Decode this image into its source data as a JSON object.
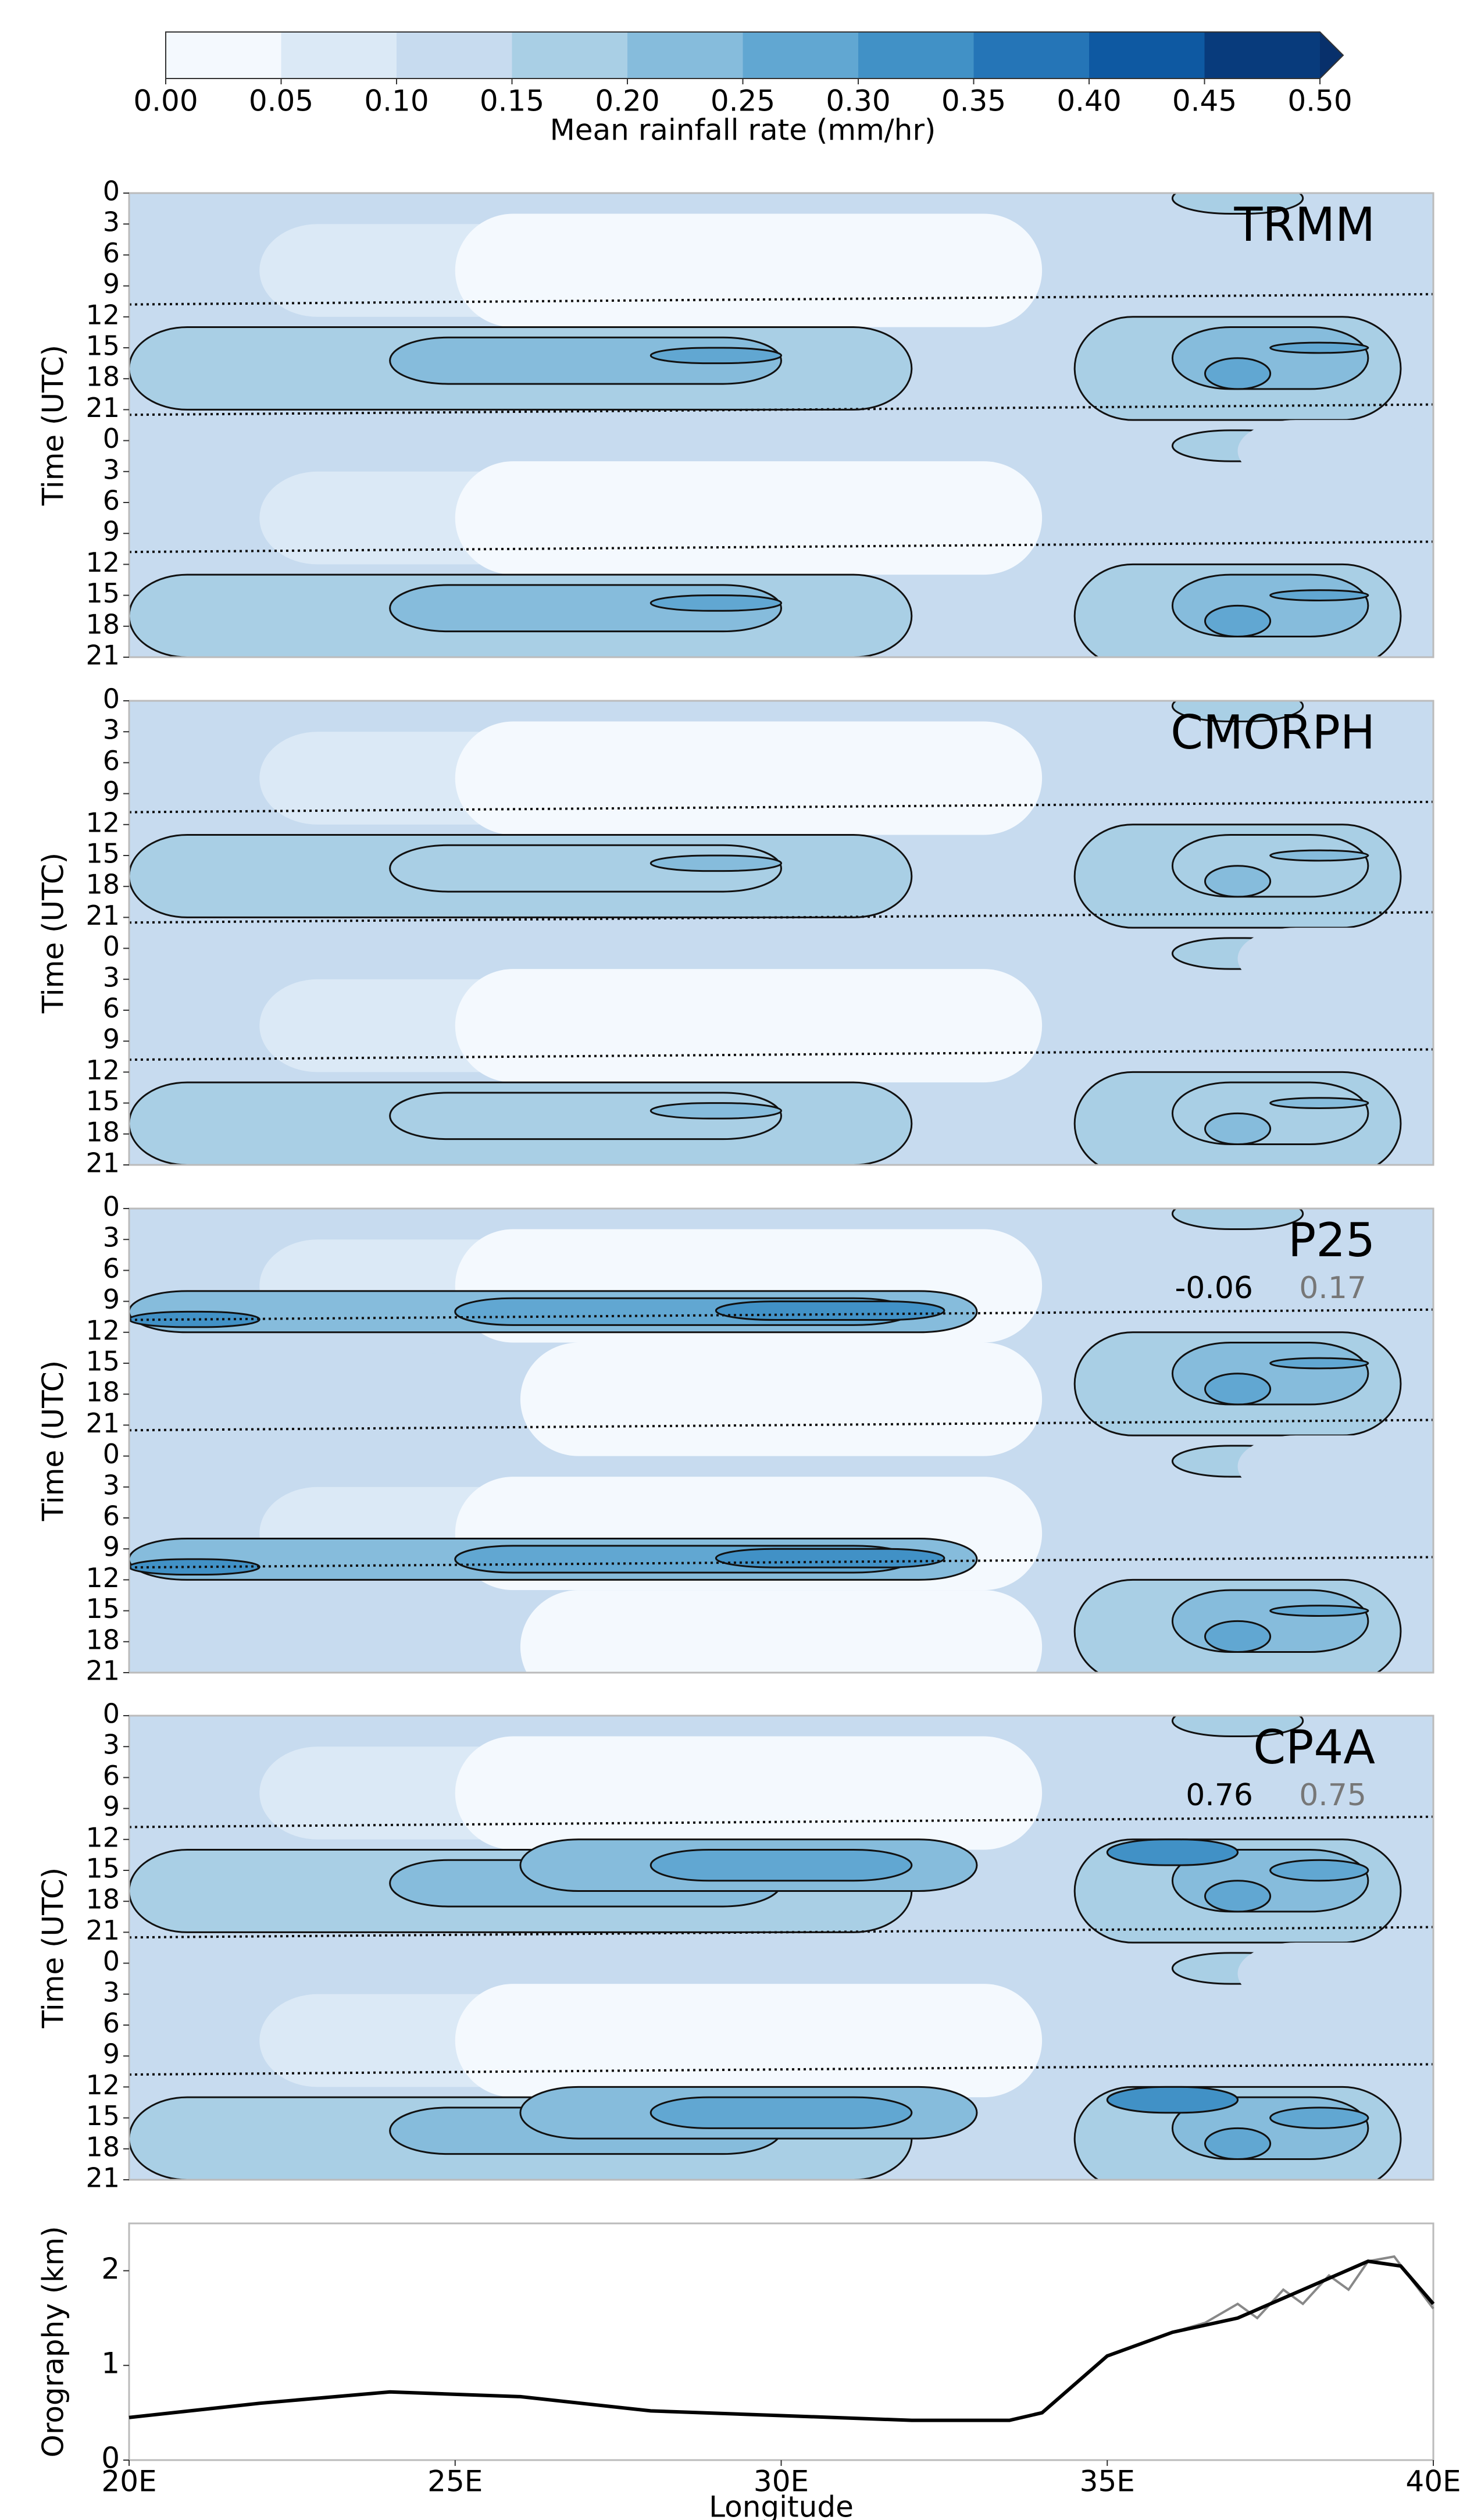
{
  "chart_data": [
    {
      "type": "colorbar",
      "label": "Mean rainfall rate (mm/hr)",
      "ticks": [
        {
          "value": 0,
          "label": "0.00"
        },
        {
          "value": 0.05,
          "label": "0.05"
        },
        {
          "value": 0.1,
          "label": "0.10"
        },
        {
          "value": 0.15,
          "label": "0.15"
        },
        {
          "value": 0.2,
          "label": "0.20"
        },
        {
          "value": 0.25,
          "label": "0.25"
        },
        {
          "value": 0.3,
          "label": "0.30"
        },
        {
          "value": 0.35,
          "label": "0.35"
        },
        {
          "value": 0.4,
          "label": "0.40"
        },
        {
          "value": 0.45,
          "label": "0.45"
        },
        {
          "value": 0.5,
          "label": "0.50"
        }
      ],
      "colors": [
        "#f4f9fe",
        "#dbe9f6",
        "#c7dbef",
        "#a9cfe5",
        "#86bcdc",
        "#61a7d2",
        "#4191c6",
        "#2575b7",
        "#0e59a2",
        "#083b7c"
      ],
      "extend_color": "#08306b"
    },
    {
      "type": "hovmoller",
      "title": "TRMM",
      "ylabel": "Time (UTC)",
      "xlim": [
        20,
        40
      ],
      "ylim": [
        0,
        45
      ],
      "yticks": [
        0,
        3,
        6,
        9,
        12,
        15,
        18,
        21,
        {
          "value": 24,
          "label": "0"
        },
        {
          "value": 27,
          "label": "3"
        },
        {
          "value": 30,
          "label": "6"
        },
        {
          "value": 33,
          "label": "9"
        },
        {
          "value": 36,
          "label": "12"
        },
        {
          "value": 39,
          "label": "15"
        },
        {
          "value": 42,
          "label": "18"
        },
        {
          "value": 45,
          "label": "21"
        }
      ]
    },
    {
      "type": "hovmoller",
      "title": "CMORPH",
      "ylabel": "Time (UTC)",
      "xlim": [
        20,
        40
      ],
      "ylim": [
        0,
        45
      ],
      "yticks": [
        0,
        3,
        6,
        9,
        12,
        15,
        18,
        21,
        {
          "value": 24,
          "label": "0"
        },
        {
          "value": 27,
          "label": "3"
        },
        {
          "value": 30,
          "label": "6"
        },
        {
          "value": 33,
          "label": "9"
        },
        {
          "value": 36,
          "label": "12"
        },
        {
          "value": 39,
          "label": "15"
        },
        {
          "value": 42,
          "label": "18"
        },
        {
          "value": 45,
          "label": "21"
        }
      ]
    },
    {
      "type": "hovmoller",
      "title": "P25",
      "ylabel": "Time (UTC)",
      "xlim": [
        20,
        40
      ],
      "ylim": [
        0,
        45
      ],
      "annotations": [
        -0.06,
        0.17
      ],
      "annotation_colors": [
        "#000000",
        "#777777"
      ],
      "yticks": [
        0,
        3,
        6,
        9,
        12,
        15,
        18,
        21,
        {
          "value": 24,
          "label": "0"
        },
        {
          "value": 27,
          "label": "3"
        },
        {
          "value": 30,
          "label": "6"
        },
        {
          "value": 33,
          "label": "9"
        },
        {
          "value": 36,
          "label": "12"
        },
        {
          "value": 39,
          "label": "15"
        },
        {
          "value": 42,
          "label": "18"
        },
        {
          "value": 45,
          "label": "21"
        }
      ]
    },
    {
      "type": "hovmoller",
      "title": "CP4A",
      "ylabel": "Time (UTC)",
      "xlim": [
        20,
        40
      ],
      "ylim": [
        0,
        45
      ],
      "annotations": [
        0.76,
        0.75
      ],
      "annotation_colors": [
        "#000000",
        "#777777"
      ],
      "yticks": [
        0,
        3,
        6,
        9,
        12,
        15,
        18,
        21,
        {
          "value": 24,
          "label": "0"
        },
        {
          "value": 27,
          "label": "3"
        },
        {
          "value": 30,
          "label": "6"
        },
        {
          "value": 33,
          "label": "9"
        },
        {
          "value": 36,
          "label": "12"
        },
        {
          "value": 39,
          "label": "15"
        },
        {
          "value": 42,
          "label": "18"
        },
        {
          "value": 45,
          "label": "21"
        }
      ]
    },
    {
      "type": "line",
      "ylabel": "Orography (km)",
      "xlabel": "Longitude",
      "xlim": [
        20,
        40
      ],
      "ylim": [
        0,
        2.5
      ],
      "yticks": [
        0,
        1,
        2
      ],
      "xticks": [
        {
          "value": 20,
          "label": "20E"
        },
        {
          "value": 25,
          "label": "25E"
        },
        {
          "value": 30,
          "label": "30E"
        },
        {
          "value": 35,
          "label": "35E"
        },
        {
          "value": 40,
          "label": "40E"
        }
      ],
      "series": [
        {
          "color": "#888888",
          "x": [
            20,
            22,
            24,
            26,
            28,
            30,
            32,
            33.5,
            34,
            35,
            36,
            36.5,
            37,
            37.3,
            37.7,
            38,
            38.4,
            38.7,
            39,
            39.4,
            40
          ],
          "values": [
            0.45,
            0.6,
            0.72,
            0.67,
            0.52,
            0.47,
            0.42,
            0.42,
            0.5,
            1.1,
            1.35,
            1.45,
            1.65,
            1.5,
            1.8,
            1.65,
            1.95,
            1.8,
            2.1,
            2.15,
            1.6
          ]
        },
        {
          "color": "#000000",
          "x": [
            20,
            22,
            24,
            26,
            28,
            30,
            32,
            33.5,
            34,
            35,
            36,
            37,
            38,
            39,
            39.5,
            40
          ],
          "values": [
            0.45,
            0.6,
            0.72,
            0.67,
            0.52,
            0.47,
            0.42,
            0.42,
            0.5,
            1.1,
            1.35,
            1.5,
            1.8,
            2.1,
            2.05,
            1.65
          ]
        }
      ]
    }
  ]
}
